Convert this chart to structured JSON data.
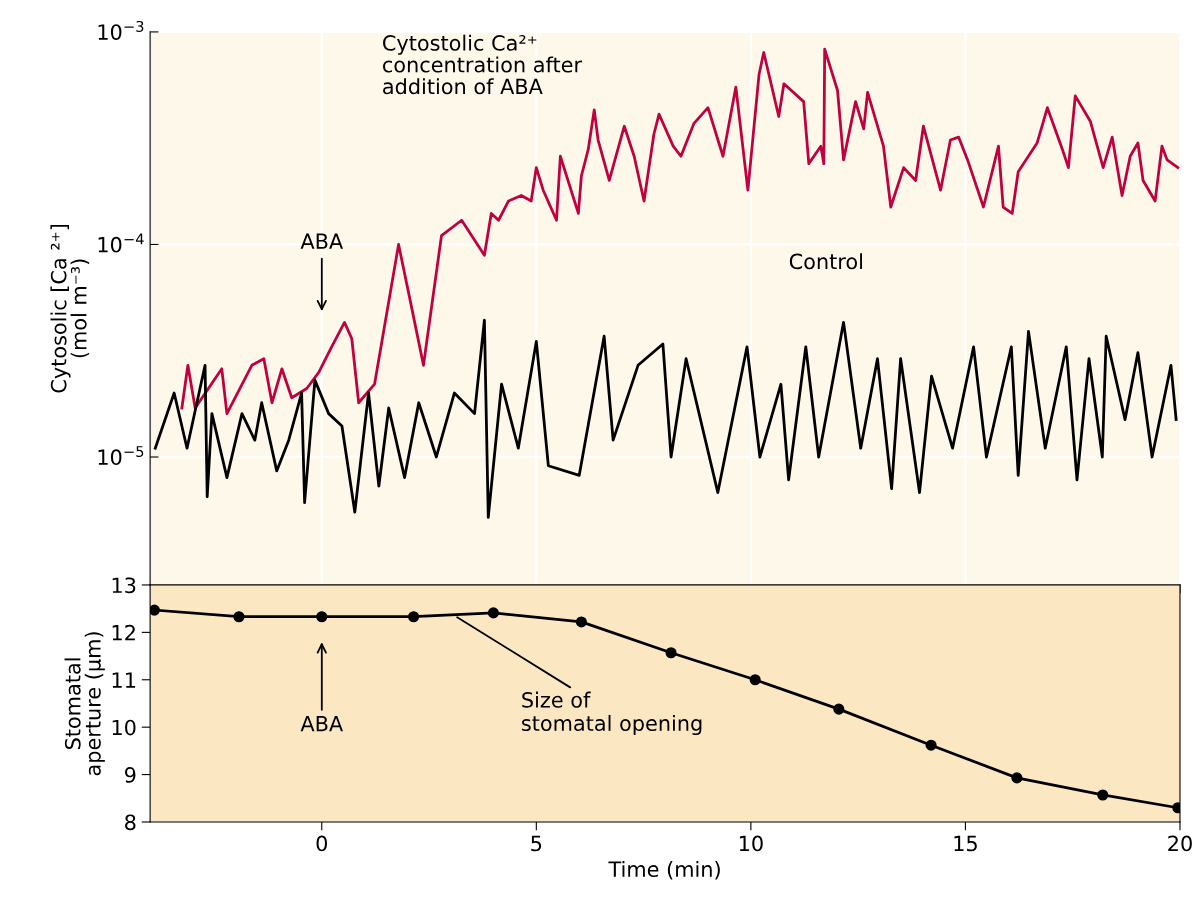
{
  "chart_data": [
    {
      "type": "line",
      "xlim": [
        -4,
        20
      ],
      "xticks": [
        0,
        5,
        10,
        15,
        20
      ],
      "tick_labels": "y",
      "ylabel": "Cytosolic [Ca ²⁺]\n(mol m⁻³)",
      "log": true,
      "ylim": [
        2.5e-06,
        0.001
      ],
      "yticks": [
        {
          "value": 1e-05,
          "label": "10$^{−5}$"
        },
        {
          "value": 0.0001,
          "label": "10$^{−4}$"
        },
        {
          "value": 0.001,
          "label": "10$^{−3}$"
        }
      ],
      "grid": true,
      "marker": "none",
      "line_style": "solid",
      "series": [
        {
          "name": "Cytostolic Ca²⁺\nconcentration after\naddition of ABA",
          "color": "#c1003f",
          "x": [
            -3.26,
            -3.12,
            -2.95,
            -2.33,
            -2.21,
            -1.63,
            -1.35,
            -1.16,
            -0.93,
            -0.7,
            -0.35,
            -0.07,
            0.23,
            0.53,
            0.7,
            0.86,
            1.23,
            1.79,
            2.09,
            2.37,
            2.79,
            3.26,
            3.79,
            3.95,
            4.12,
            4.35,
            4.65,
            4.88,
            5.0,
            5.16,
            5.47,
            5.56,
            5.98,
            6.05,
            6.21,
            6.35,
            6.44,
            6.7,
            7.05,
            7.28,
            7.51,
            7.74,
            7.86,
            8.19,
            8.37,
            8.67,
            9.0,
            9.35,
            9.65,
            9.93,
            10.19,
            10.3,
            10.65,
            10.77,
            11.23,
            11.35,
            11.63,
            11.7,
            11.72,
            12.02,
            12.16,
            12.44,
            12.63,
            12.72,
            13.09,
            13.26,
            13.56,
            13.84,
            14.02,
            14.42,
            14.65,
            14.84,
            15.05,
            15.42,
            15.77,
            15.88,
            16.09,
            16.23,
            16.67,
            16.91,
            17.26,
            17.4,
            17.56,
            17.91,
            18.21,
            18.42,
            18.65,
            18.84,
            19.02,
            19.14,
            19.42,
            19.58,
            19.7,
            19.95
          ],
          "values": [
            1.7e-05,
            2.7e-05,
            1.7e-05,
            2.6e-05,
            1.6e-05,
            2.7e-05,
            2.9e-05,
            1.8e-05,
            2.6e-05,
            1.9e-05,
            2.1e-05,
            2.5e-05,
            3.3e-05,
            4.3e-05,
            3.6e-05,
            1.8e-05,
            2.2e-05,
            0.0001,
            5.1e-05,
            2.7e-05,
            0.00011,
            0.00013,
            8.9e-05,
            0.00014,
            0.00013,
            0.00016,
            0.00017,
            0.00016,
            0.00023,
            0.00018,
            0.00013,
            0.00026,
            0.00014,
            0.00021,
            0.00028,
            0.00043,
            0.00031,
            0.0002,
            0.00036,
            0.00026,
            0.00016,
            0.00033,
            0.00041,
            0.00029,
            0.00026,
            0.00037,
            0.00044,
            0.00026,
            0.00055,
            0.00018,
            0.00063,
            0.0008,
            0.0004,
            0.00057,
            0.00047,
            0.00024,
            0.00029,
            0.00024,
            0.00083,
            0.00053,
            0.00025,
            0.00047,
            0.00035,
            0.00052,
            0.00029,
            0.00015,
            0.00023,
            0.0002,
            0.00036,
            0.00018,
            0.00031,
            0.00032,
            0.00025,
            0.00015,
            0.00029,
            0.00015,
            0.00014,
            0.00022,
            0.0003,
            0.00044,
            0.00028,
            0.00023,
            0.0005,
            0.00038,
            0.00023,
            0.00032,
            0.00017,
            0.00026,
            0.0003,
            0.0002,
            0.00016,
            0.00029,
            0.00025,
            0.00023
          ]
        },
        {
          "name": "Control",
          "color": "#000000",
          "x": [
            -3.88,
            -3.44,
            -3.14,
            -2.72,
            -2.67,
            -2.56,
            -2.21,
            -1.86,
            -1.56,
            -1.4,
            -1.05,
            -0.77,
            -0.47,
            -0.4,
            -0.16,
            0.16,
            0.47,
            0.77,
            1.09,
            1.33,
            1.56,
            1.93,
            2.26,
            2.67,
            3.09,
            3.56,
            3.79,
            3.88,
            4.19,
            4.58,
            5.0,
            5.28,
            6.0,
            6.58,
            6.79,
            7.37,
            7.95,
            8.14,
            8.49,
            9.23,
            9.91,
            10.21,
            10.7,
            10.88,
            11.28,
            11.58,
            12.16,
            12.56,
            12.95,
            13.28,
            13.49,
            13.93,
            14.21,
            14.7,
            15.19,
            15.49,
            16.07,
            16.23,
            16.47,
            16.86,
            17.35,
            17.6,
            17.88,
            18.19,
            18.28,
            18.72,
            19.02,
            19.35,
            19.79,
            19.91
          ],
          "values": [
            1.1e-05,
            2e-05,
            1.1e-05,
            2.7e-05,
            6.5e-06,
            1.6e-05,
            8e-06,
            1.6e-05,
            1.2e-05,
            1.8e-05,
            8.6e-06,
            1.2e-05,
            2e-05,
            6.1e-06,
            2.3e-05,
            1.6e-05,
            1.4e-05,
            5.5e-06,
            2e-05,
            7.3e-06,
            1.7e-05,
            8e-06,
            1.8e-05,
            1e-05,
            2e-05,
            1.6e-05,
            4.4e-05,
            5.2e-06,
            2.2e-05,
            1.1e-05,
            3.5e-05,
            9.1e-06,
            8.2e-06,
            3.7e-05,
            1.2e-05,
            2.7e-05,
            3.4e-05,
            1e-05,
            2.9e-05,
            6.8e-06,
            3.3e-05,
            1e-05,
            2.2e-05,
            7.8e-06,
            3.3e-05,
            1e-05,
            4.3e-05,
            1.1e-05,
            2.9e-05,
            7.1e-06,
            2.9e-05,
            6.8e-06,
            2.4e-05,
            1.1e-05,
            3.3e-05,
            1e-05,
            3.3e-05,
            8.2e-06,
            3.9e-05,
            1.1e-05,
            3.3e-05,
            7.8e-06,
            2.9e-05,
            1e-05,
            3.7e-05,
            1.5e-05,
            3.1e-05,
            1e-05,
            2.7e-05,
            1.5e-05
          ]
        }
      ],
      "annotations": [
        "ABA"
      ]
    },
    {
      "type": "line",
      "xlim": [
        -4,
        20
      ],
      "xticks": [
        0,
        5,
        10,
        15,
        20
      ],
      "ylim": [
        8,
        13
      ],
      "yticks": [
        8,
        9,
        10,
        11,
        12,
        13
      ],
      "xlabel": "Time (min)",
      "ylabel": "Stomatal\naperture (µm)",
      "grid": false,
      "marker": "circle",
      "line_style": "solid",
      "series": [
        {
          "color": "#000000",
          "x": [
            -3.9,
            -1.93,
            0,
            2.14,
            4.0,
            6.05,
            8.14,
            10.1,
            12.05,
            14.2,
            16.2,
            18.2,
            19.95
          ],
          "values": [
            12.47,
            12.33,
            12.33,
            12.33,
            12.41,
            12.22,
            11.57,
            11.0,
            10.38,
            9.62,
            8.93,
            8.57,
            8.3
          ]
        }
      ],
      "annotations": [
        "ABA",
        {
          "text": "Size of\nstomatal opening",
          "x": 3.1,
          "y": 12.35
        }
      ]
    }
  ]
}
